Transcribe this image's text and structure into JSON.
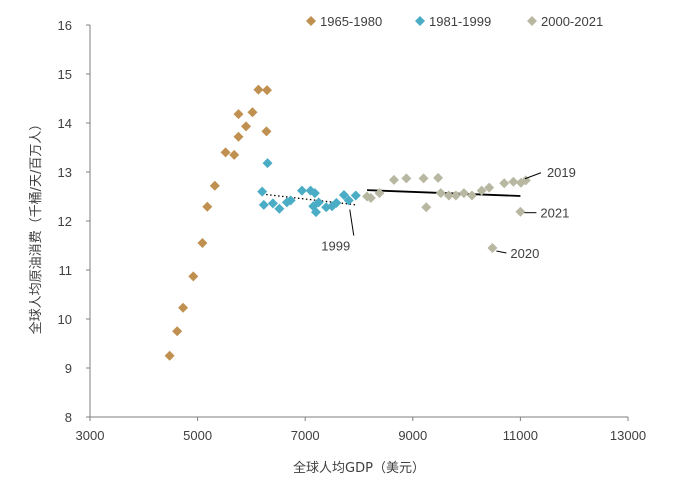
{
  "chart_data": {
    "type": "scatter",
    "title": "",
    "xlabel": "全球人均GDP（美元）",
    "ylabel": "全球人均原油消费（千桶/天/百万人）",
    "xlim": [
      3000,
      13000
    ],
    "ylim": [
      8,
      16
    ],
    "x_ticks": [
      "3000",
      "5000",
      "7000",
      "9000",
      "11000",
      "13000"
    ],
    "y_ticks": [
      "8",
      "9",
      "10",
      "11",
      "12",
      "13",
      "14",
      "15",
      "16"
    ],
    "grid": false,
    "legend_position": "top",
    "series": [
      {
        "name": "1965-1980",
        "color": "#C09050",
        "points": [
          [
            4480,
            9.25
          ],
          [
            4620,
            9.75
          ],
          [
            4730,
            10.23
          ],
          [
            4920,
            10.87
          ],
          [
            5090,
            11.55
          ],
          [
            5180,
            12.29
          ],
          [
            5320,
            12.72
          ],
          [
            5520,
            13.4
          ],
          [
            5680,
            13.35
          ],
          [
            5760,
            13.72
          ],
          [
            5760,
            14.18
          ],
          [
            5900,
            13.93
          ],
          [
            6020,
            14.22
          ],
          [
            6130,
            14.68
          ],
          [
            6290,
            14.67
          ],
          [
            6280,
            13.83
          ]
        ]
      },
      {
        "name": "1981-1999",
        "color": "#4BACC6",
        "points": [
          [
            6300,
            13.18
          ],
          [
            6200,
            12.6
          ],
          [
            6230,
            12.33
          ],
          [
            6400,
            12.36
          ],
          [
            6520,
            12.25
          ],
          [
            6660,
            12.38
          ],
          [
            6730,
            12.42
          ],
          [
            6940,
            12.62
          ],
          [
            7100,
            12.62
          ],
          [
            7180,
            12.57
          ],
          [
            7150,
            12.3
          ],
          [
            7200,
            12.18
          ],
          [
            7250,
            12.38
          ],
          [
            7390,
            12.28
          ],
          [
            7500,
            12.3
          ],
          [
            7580,
            12.37
          ],
          [
            7720,
            12.53
          ],
          [
            7810,
            12.42
          ],
          [
            7940,
            12.52
          ]
        ]
      },
      {
        "name": "2000-2021",
        "color": "#B8B8A2",
        "points": [
          [
            8150,
            12.5
          ],
          [
            8220,
            12.47
          ],
          [
            8380,
            12.57
          ],
          [
            8650,
            12.84
          ],
          [
            8880,
            12.87
          ],
          [
            9200,
            12.87
          ],
          [
            9250,
            12.28
          ],
          [
            9470,
            12.88
          ],
          [
            9520,
            12.57
          ],
          [
            9670,
            12.52
          ],
          [
            9800,
            12.52
          ],
          [
            9950,
            12.57
          ],
          [
            10100,
            12.52
          ],
          [
            10280,
            12.62
          ],
          [
            10420,
            12.68
          ],
          [
            10480,
            11.45
          ],
          [
            10700,
            12.77
          ],
          [
            10870,
            12.8
          ],
          [
            11000,
            12.19
          ],
          [
            11010,
            12.78
          ],
          [
            11100,
            12.83
          ]
        ]
      }
    ],
    "trendlines": [
      {
        "series": "1981-1999",
        "style": "dotted",
        "from": [
          6200,
          12.55
        ],
        "to": [
          7940,
          12.33
        ]
      },
      {
        "series": "2000-2021",
        "style": "solid",
        "from": [
          8150,
          12.63
        ],
        "to": [
          11000,
          12.51
        ]
      }
    ],
    "annotations": [
      {
        "text": "1999",
        "point": [
          7940,
          12.52
        ]
      },
      {
        "text": "2019",
        "point": [
          11010,
          12.78
        ]
      },
      {
        "text": "2021",
        "point": [
          11000,
          12.19
        ]
      },
      {
        "text": "2020",
        "point": [
          10480,
          11.45
        ]
      }
    ]
  }
}
